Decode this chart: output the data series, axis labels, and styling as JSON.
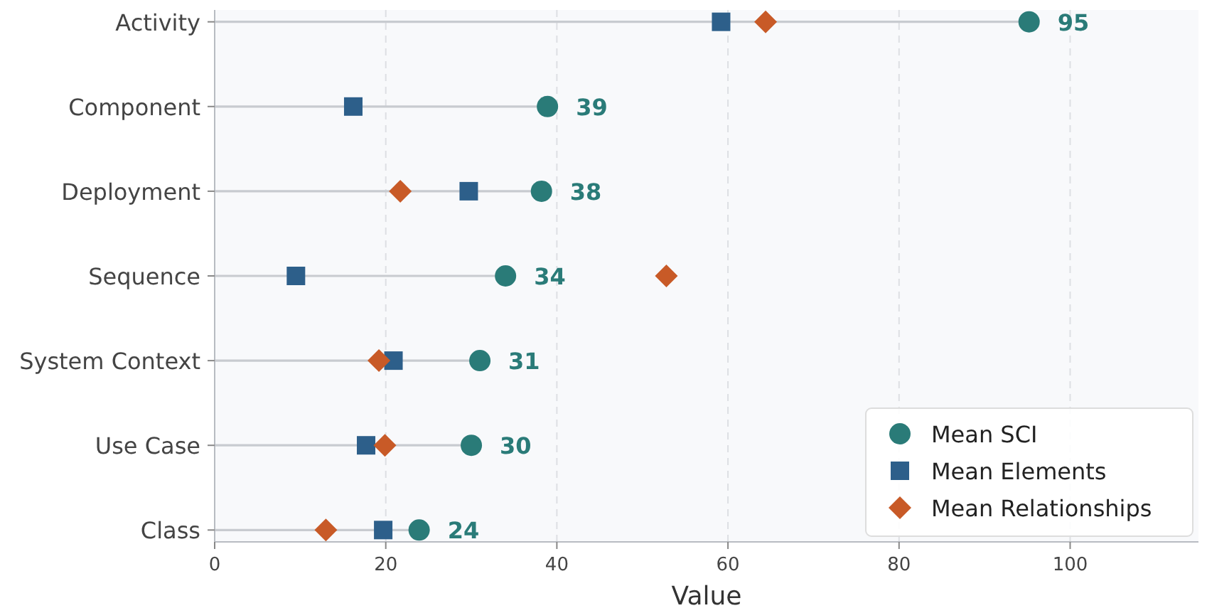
{
  "chart_data": {
    "type": "lollipop",
    "orientation": "horizontal",
    "xlabel": "Value",
    "categories": [
      "Activity",
      "Component",
      "Deployment",
      "Sequence",
      "System Context",
      "Use Case",
      "Class"
    ],
    "xlim": [
      0,
      115
    ],
    "xticks": [
      0,
      20,
      40,
      60,
      80,
      100
    ],
    "grid": "x",
    "legend": "bottom right",
    "series": [
      {
        "name": "Mean SCI",
        "type": "lollipop",
        "marker": "circle",
        "color": "#2a7b78",
        "values": [
          95.2,
          38.9,
          38.2,
          34,
          31,
          30,
          23.9
        ],
        "value_labels": [
          "95",
          "39",
          "38",
          "34",
          "31",
          "30",
          "24"
        ]
      },
      {
        "name": "Mean Elements",
        "type": "scatter",
        "marker": "square",
        "color": "#2d5f8a",
        "values": [
          59.2,
          16.2,
          29.7,
          9.5,
          20.9,
          17.7,
          19.7
        ]
      },
      {
        "name": "Mean Relationships",
        "type": "scatter",
        "marker": "diamond",
        "color": "#c85a27",
        "values": [
          64.4,
          null,
          21.7,
          52.8,
          19.2,
          19.9,
          13
        ]
      }
    ]
  }
}
